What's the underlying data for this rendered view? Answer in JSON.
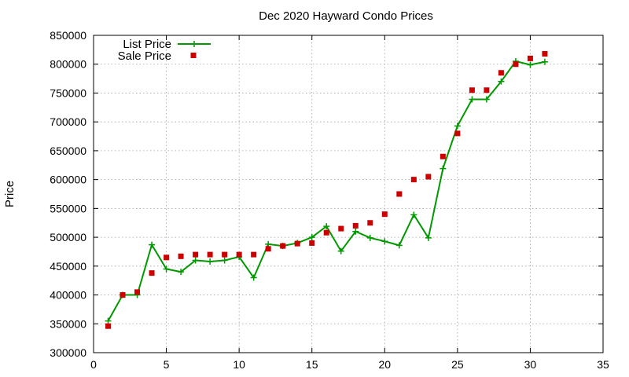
{
  "chart_data": {
    "type": "line",
    "title": "Dec 2020 Hayward Condo Prices",
    "xlabel": "",
    "ylabel": "Price",
    "xlim": [
      0,
      35
    ],
    "ylim": [
      300000,
      850000
    ],
    "xticks": [
      0,
      5,
      10,
      15,
      20,
      25,
      30,
      35
    ],
    "yticks": [
      300000,
      350000,
      400000,
      450000,
      500000,
      550000,
      600000,
      650000,
      700000,
      750000,
      800000,
      850000
    ],
    "grid": true,
    "legend_position": "top-left",
    "series": [
      {
        "name": "List Price",
        "style": "line+points",
        "marker": "plus",
        "color": "#009900",
        "x": [
          1,
          2,
          3,
          4,
          5,
          6,
          7,
          8,
          9,
          10,
          11,
          12,
          13,
          14,
          15,
          16,
          17,
          18,
          19,
          20,
          21,
          22,
          23,
          24,
          25,
          26,
          27,
          28,
          29,
          30,
          31
        ],
        "y": [
          355000,
          400000,
          400000,
          487000,
          445000,
          440000,
          460000,
          458000,
          460000,
          466000,
          430000,
          488000,
          485000,
          490000,
          500000,
          519000,
          476000,
          510000,
          499000,
          493000,
          486000,
          539000,
          499000,
          619000,
          693000,
          739000,
          739000,
          770000,
          805000,
          799000,
          804000
        ]
      },
      {
        "name": "Sale Price",
        "style": "points",
        "marker": "square",
        "color": "#cc0000",
        "x": [
          1,
          2,
          3,
          4,
          5,
          6,
          7,
          8,
          9,
          10,
          11,
          12,
          13,
          14,
          15,
          16,
          17,
          18,
          19,
          20,
          21,
          22,
          23,
          24,
          25,
          26,
          27,
          28,
          29,
          30,
          31
        ],
        "y": [
          346000,
          400000,
          405000,
          438000,
          465000,
          467000,
          470000,
          470000,
          470000,
          470000,
          470000,
          480000,
          485000,
          489000,
          490000,
          508000,
          515000,
          520000,
          525000,
          540000,
          575000,
          600000,
          605000,
          640000,
          680000,
          755000,
          755000,
          785000,
          800000,
          810000,
          818000
        ]
      }
    ]
  }
}
